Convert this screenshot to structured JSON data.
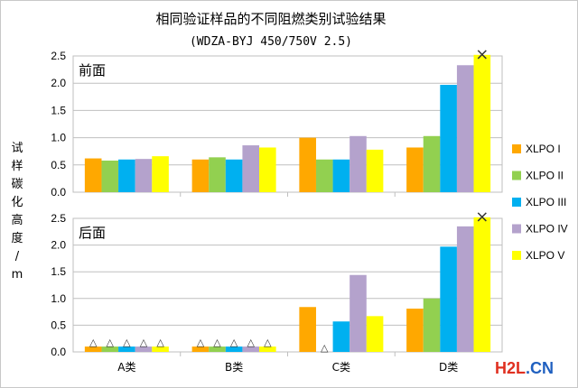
{
  "chart_data": {
    "type": "bar",
    "title": "相同验证样品的不同阻燃类别试验结果",
    "subtitle": "(WDZA-BYJ 450/750V 2.5)",
    "ylabel": "试样碳化高度/m",
    "categories": [
      "A类",
      "B类",
      "C类",
      "D类"
    ],
    "ylim": [
      0,
      2.5
    ],
    "yticks": [
      "0.0",
      "0.5",
      "1.0",
      "1.5",
      "2.0",
      "2.5"
    ],
    "grid": true,
    "legend_position": "right",
    "series_names": [
      "XLPO I",
      "XLPO II",
      "XLPO III",
      "XLPO IV",
      "XLPO V"
    ],
    "colors": [
      "#ffa800",
      "#92d050",
      "#00b0f0",
      "#b4a2cc",
      "#ffff00"
    ],
    "panels": [
      {
        "label": "前面",
        "series": [
          {
            "name": "XLPO I",
            "values": [
              0.62,
              0.6,
              1.0,
              0.82
            ]
          },
          {
            "name": "XLPO II",
            "values": [
              0.58,
              0.64,
              0.6,
              1.03
            ]
          },
          {
            "name": "XLPO III",
            "values": [
              0.6,
              0.6,
              0.6,
              1.97
            ]
          },
          {
            "name": "XLPO IV",
            "values": [
              0.61,
              0.86,
              1.03,
              2.33
            ]
          },
          {
            "name": "XLPO V",
            "values": [
              0.66,
              0.82,
              0.78,
              2.52
            ]
          }
        ],
        "markers": [
          {
            "category": 3,
            "series": 4,
            "symbol": "×"
          }
        ]
      },
      {
        "label": "后面",
        "series": [
          {
            "name": "XLPO I",
            "values": [
              0.1,
              0.1,
              0.84,
              0.81
            ]
          },
          {
            "name": "XLPO II",
            "values": [
              0.1,
              0.1,
              0.0,
              1.0
            ]
          },
          {
            "name": "XLPO III",
            "values": [
              0.1,
              0.1,
              0.57,
              1.97
            ]
          },
          {
            "name": "XLPO IV",
            "values": [
              0.1,
              0.1,
              1.44,
              2.35
            ]
          },
          {
            "name": "XLPO V",
            "values": [
              0.1,
              0.1,
              0.67,
              2.52
            ]
          }
        ],
        "markers": [
          {
            "category": 0,
            "series": 0,
            "symbol": "△"
          },
          {
            "category": 0,
            "series": 1,
            "symbol": "△"
          },
          {
            "category": 0,
            "series": 2,
            "symbol": "△"
          },
          {
            "category": 0,
            "series": 3,
            "symbol": "△"
          },
          {
            "category": 0,
            "series": 4,
            "symbol": "△"
          },
          {
            "category": 1,
            "series": 0,
            "symbol": "△"
          },
          {
            "category": 1,
            "series": 1,
            "symbol": "△"
          },
          {
            "category": 1,
            "series": 2,
            "symbol": "△"
          },
          {
            "category": 1,
            "series": 3,
            "symbol": "△"
          },
          {
            "category": 1,
            "series": 4,
            "symbol": "△"
          },
          {
            "category": 2,
            "series": 1,
            "symbol": "△"
          },
          {
            "category": 3,
            "series": 4,
            "symbol": "×"
          }
        ]
      }
    ]
  },
  "watermark": {
    "part1": "H2L",
    "part2": ".CN"
  }
}
